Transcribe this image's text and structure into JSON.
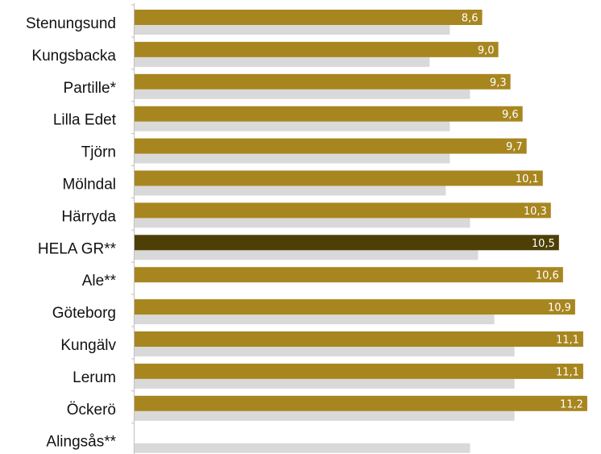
{
  "chart_data": {
    "type": "bar",
    "orientation": "horizontal",
    "categories": [
      "Stenungsund",
      "Kungsbacka",
      "Partille*",
      "Lilla Edet",
      "Tjörn",
      "Mölndal",
      "Härryda",
      "HELA GR**",
      "Ale**",
      "Göteborg",
      "Kungälv",
      "Lerum",
      "Öckerö",
      "Alingsås**"
    ],
    "series": [
      {
        "values": [
          8.6,
          9.0,
          9.3,
          9.6,
          9.7,
          10.1,
          10.3,
          10.5,
          10.6,
          10.9,
          11.1,
          11.1,
          11.2,
          null
        ],
        "value_labels": [
          "8,6",
          "9,0",
          "9,3",
          "9,6",
          "9,7",
          "10,1",
          "10,3",
          "10,5",
          "10,6",
          "10,9",
          "11,1",
          "11,1",
          "11,2",
          ""
        ]
      },
      {
        "values": [
          7.8,
          7.3,
          8.3,
          7.8,
          7.8,
          7.7,
          8.3,
          8.5,
          null,
          8.9,
          9.4,
          9.4,
          9.4,
          8.3
        ]
      }
    ],
    "xlim": [
      0,
      11.5
    ],
    "highlight_category": "HELA GR**",
    "colors": {
      "primary": "#a8861f",
      "highlight": "#4d3f06",
      "secondary": "#d9d9d9",
      "axis": "#bfbfbf",
      "value_label": "#ffffff"
    },
    "grid": false,
    "legend": "none"
  }
}
